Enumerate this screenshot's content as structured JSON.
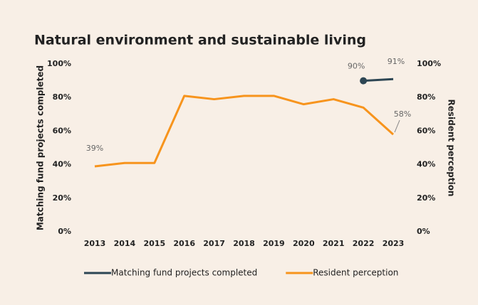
{
  "chart_data": {
    "type": "line",
    "title": "Natural environment  and sustainable living",
    "categories": [
      "2013",
      "2014",
      "2015",
      "2016",
      "2017",
      "2018",
      "2019",
      "2020",
      "2021",
      "2022",
      "2023"
    ],
    "series": [
      {
        "name": "Matching fund projects completed",
        "color": "#2d4654",
        "axis": "y",
        "values": [
          null,
          null,
          null,
          null,
          null,
          null,
          null,
          null,
          null,
          90,
          91
        ],
        "value_labels": [
          null,
          null,
          null,
          null,
          null,
          null,
          null,
          null,
          null,
          "90%",
          "91%"
        ]
      },
      {
        "name": "Resident perception",
        "color": "#f7941d",
        "axis": "y2",
        "values": [
          39,
          41,
          41,
          81,
          79,
          81,
          81,
          76,
          79,
          74,
          58
        ],
        "value_labels": [
          "39%",
          null,
          null,
          null,
          null,
          null,
          null,
          null,
          null,
          null,
          "58%"
        ]
      }
    ],
    "ylabel": "Matching fund projects completed",
    "y2label": "Resident perception",
    "ylim": [
      0,
      100
    ],
    "yticks": [
      {
        "value": 0,
        "label": "0%"
      },
      {
        "value": 20,
        "label": "20%"
      },
      {
        "value": 40,
        "label": "40%"
      },
      {
        "value": 60,
        "label": "60%"
      },
      {
        "value": 80,
        "label": "80%"
      },
      {
        "value": 100,
        "label": "100%"
      }
    ],
    "y2lim": [
      0,
      100
    ],
    "y2ticks": [
      {
        "value": 0,
        "label": "0%"
      },
      {
        "value": 20,
        "label": "20%"
      },
      {
        "value": 40,
        "label": "40%"
      },
      {
        "value": 60,
        "label": "60%"
      },
      {
        "value": 80,
        "label": "80%"
      },
      {
        "value": 100,
        "label": "100%"
      }
    ],
    "grid": false,
    "legend": "bottom"
  }
}
